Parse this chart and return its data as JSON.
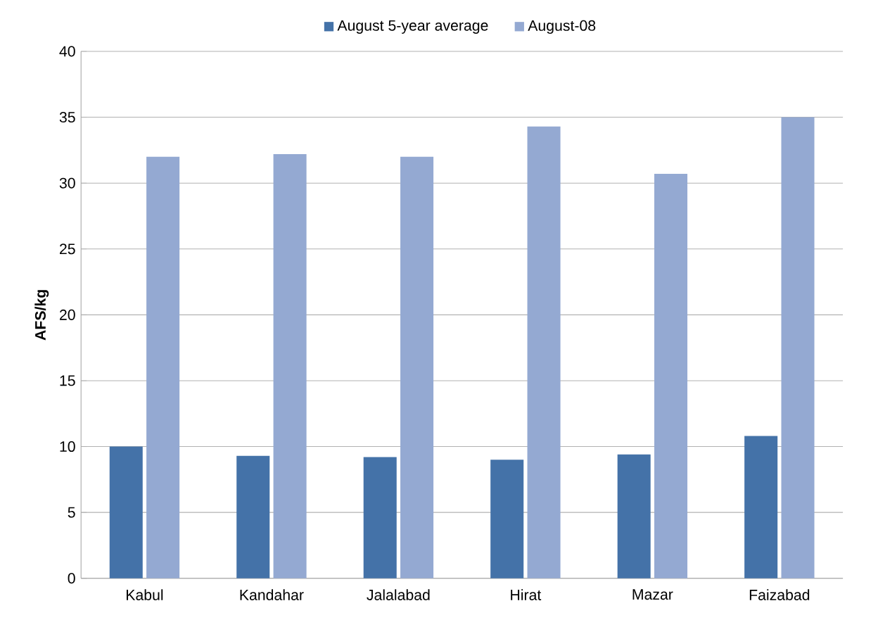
{
  "chart_data": {
    "type": "bar",
    "ylabel": "AFS/kg",
    "categories": [
      "Kabul",
      "Kandahar",
      "Jalalabad",
      "Hirat",
      "Mazar",
      "Faizabad"
    ],
    "series": [
      {
        "name": "August 5-year average",
        "color": "#4472a8",
        "values": [
          10.0,
          9.3,
          9.2,
          9.0,
          9.4,
          10.8
        ]
      },
      {
        "name": "August-08",
        "color": "#94a9d2",
        "values": [
          32.0,
          32.2,
          32.0,
          34.3,
          30.7,
          35.0
        ]
      }
    ],
    "ylim": [
      0,
      40
    ],
    "yticks": [
      0,
      5,
      10,
      15,
      20,
      25,
      30,
      35,
      40
    ],
    "grid": "y",
    "legend": "top"
  }
}
